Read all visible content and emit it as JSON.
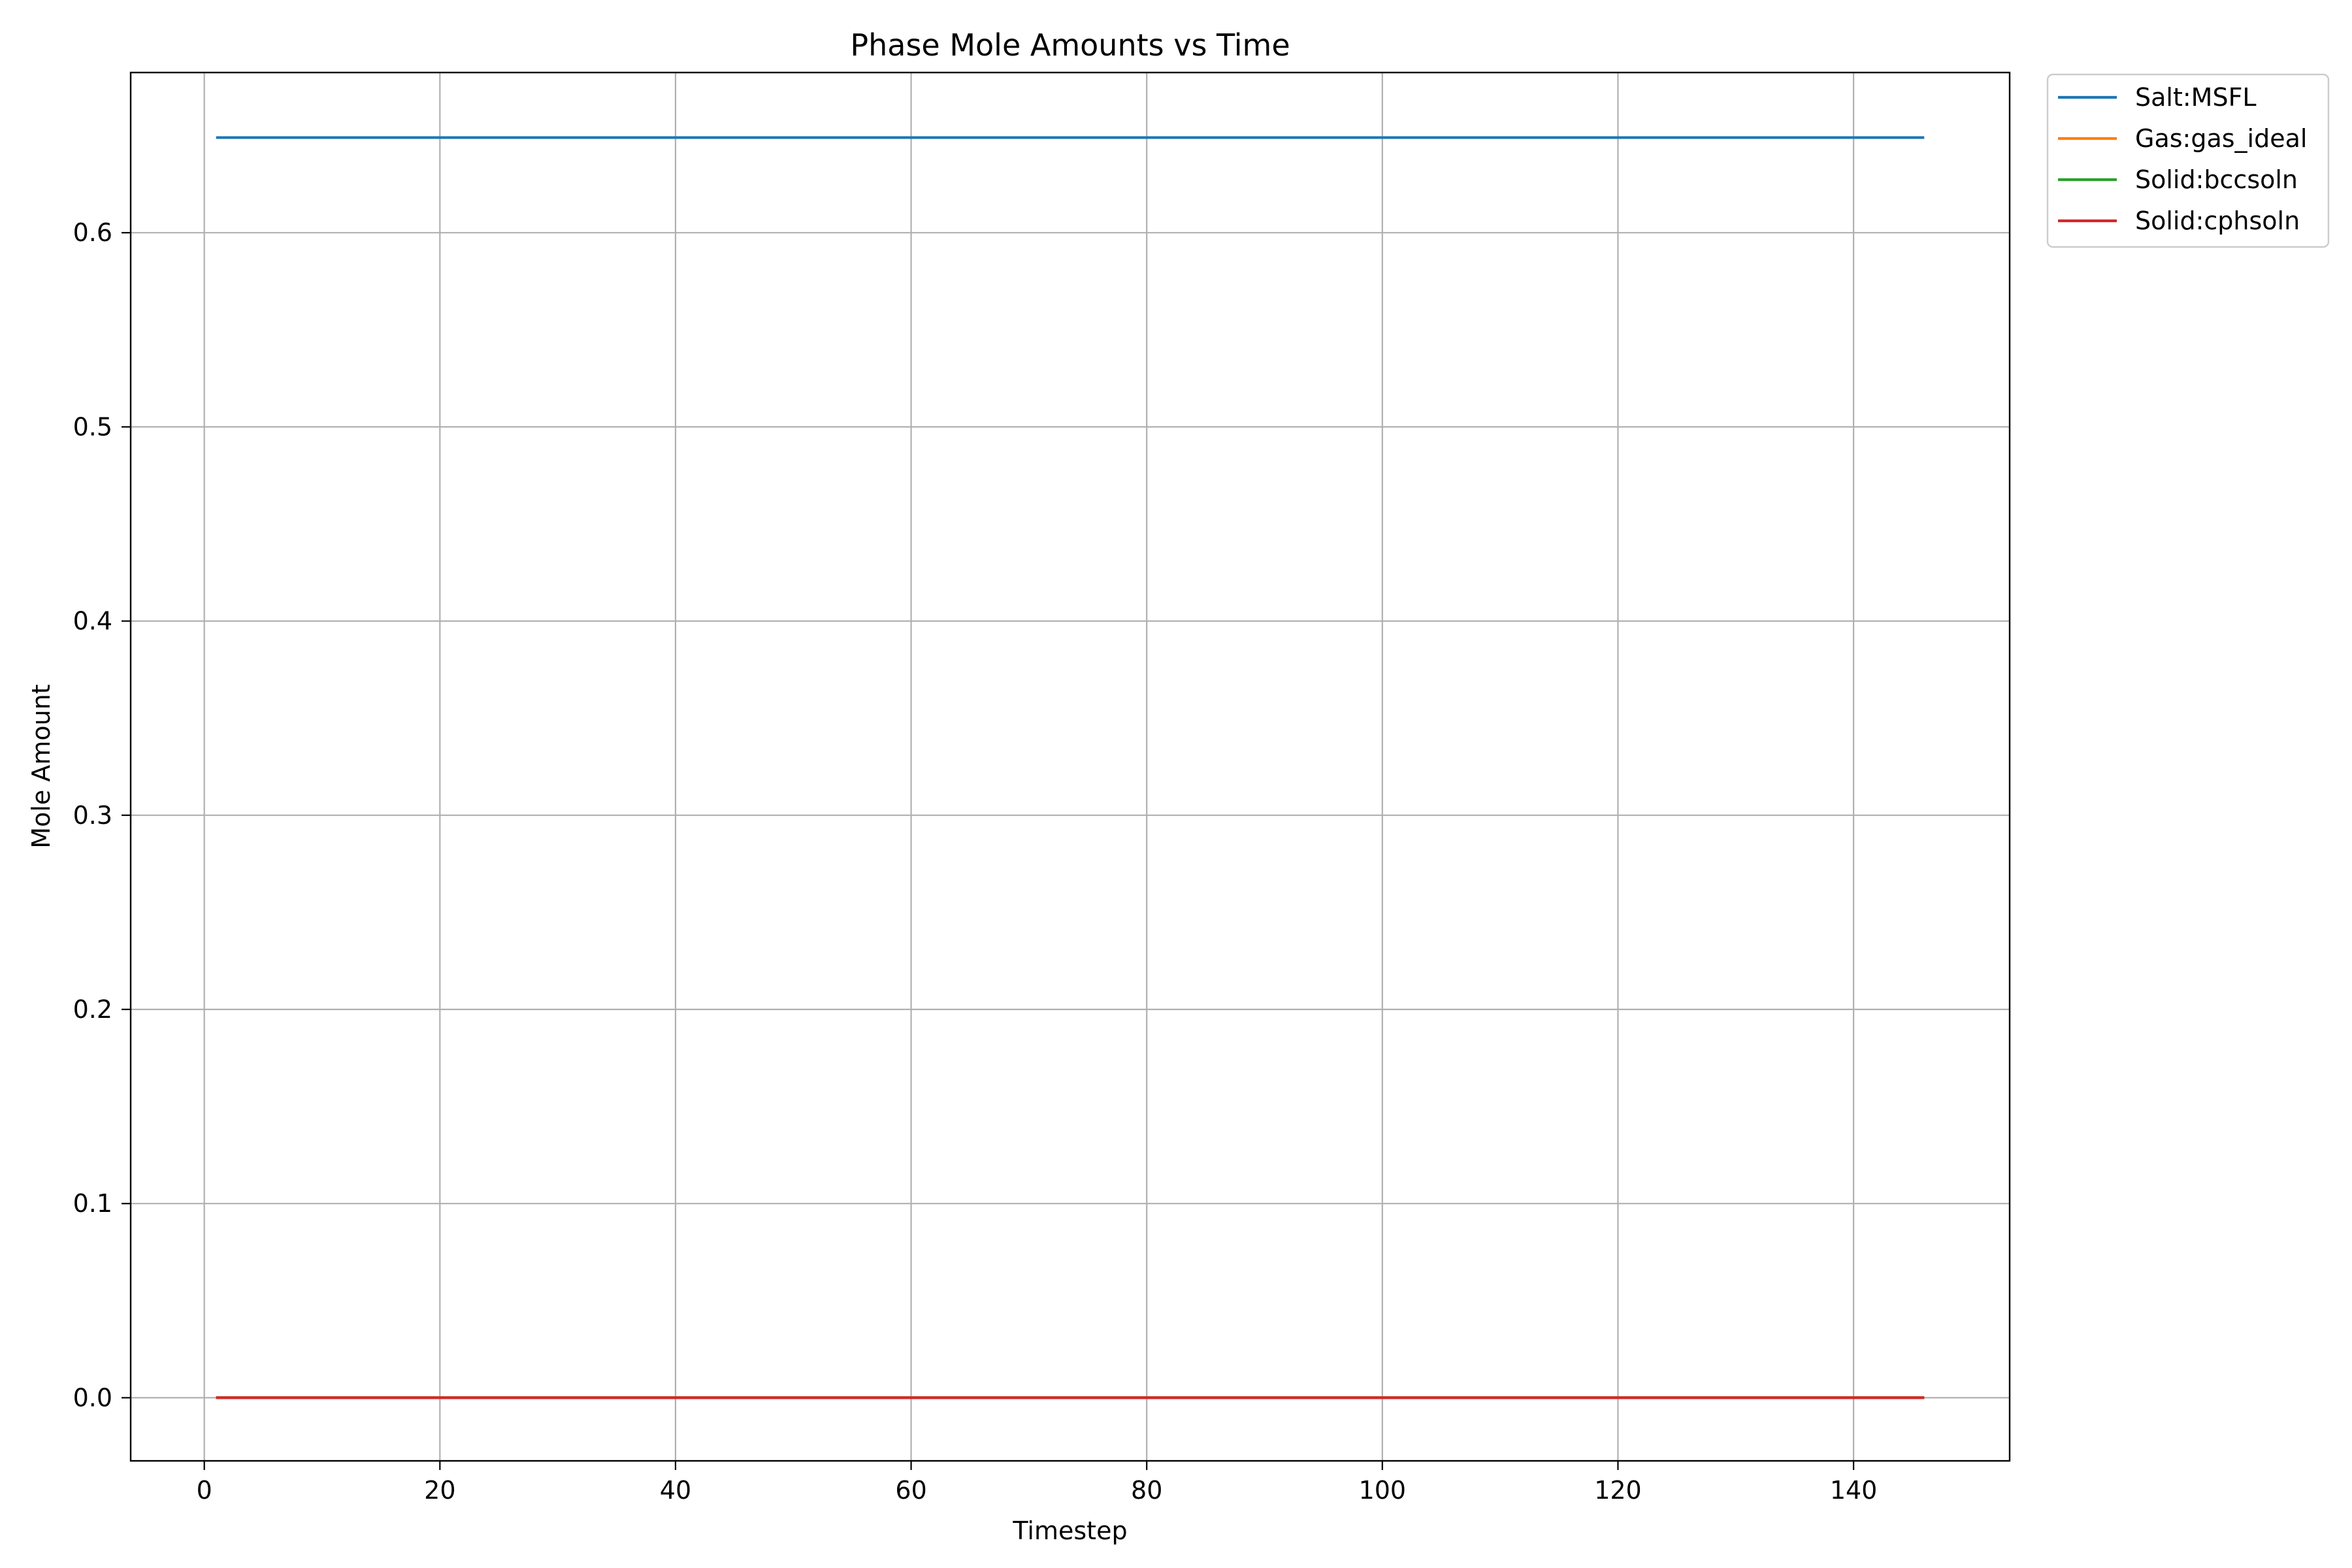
{
  "chart_data": {
    "type": "line",
    "title": "Phase Mole Amounts vs Time",
    "xlabel": "Timestep",
    "ylabel": "Mole Amount",
    "xlim": [
      -6.25,
      153.25
    ],
    "ylim": [
      -0.0325,
      0.6825
    ],
    "xticks": [
      0,
      20,
      40,
      60,
      80,
      100,
      120,
      140
    ],
    "xtick_labels": [
      "0",
      "20",
      "40",
      "60",
      "80",
      "100",
      "120",
      "140"
    ],
    "yticks": [
      0.0,
      0.1,
      0.2,
      0.3,
      0.4,
      0.5,
      0.6
    ],
    "ytick_labels": [
      "0.0",
      "0.1",
      "0.2",
      "0.3",
      "0.4",
      "0.5",
      "0.6"
    ],
    "grid": true,
    "legend_position": "outside-top-right",
    "x": [
      1,
      146
    ],
    "series": [
      {
        "name": "Salt:MSFL",
        "color": "#1f77b4",
        "values": [
          0.649,
          0.649
        ]
      },
      {
        "name": "Gas:gas_ideal",
        "color": "#ff7f0e",
        "values": [
          0.0,
          0.0
        ]
      },
      {
        "name": "Solid:bccsoln",
        "color": "#2ca02c",
        "values": [
          0.0,
          0.0
        ]
      },
      {
        "name": "Solid:cphsoln",
        "color": "#d62728",
        "values": [
          0.0,
          0.0
        ]
      }
    ]
  }
}
